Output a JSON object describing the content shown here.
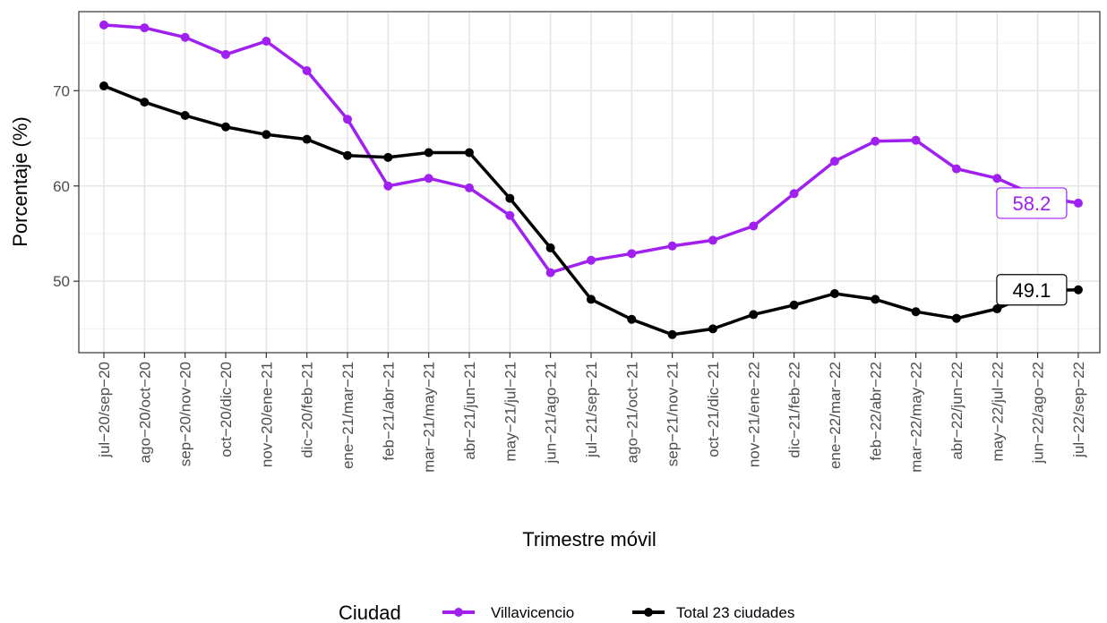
{
  "chart_data": {
    "type": "line",
    "xlabel": "Trimestre móvil",
    "ylabel": "Porcentaje (%)",
    "ylim": [
      42.5,
      78.3
    ],
    "yticks": [
      50,
      60,
      70
    ],
    "grid": true,
    "legend_placement": "bottom",
    "legend_title": "Ciudad",
    "categories": [
      "jul−20/sep−20",
      "ago−20/oct−20",
      "sep−20/nov−20",
      "oct−20/dic−20",
      "nov−20/ene−21",
      "dic−20/feb−21",
      "ene−21/mar−21",
      "feb−21/abr−21",
      "mar−21/may−21",
      "abr−21/jun−21",
      "may−21/jul−21",
      "jun−21/ago−21",
      "jul−21/sep−21",
      "ago−21/oct−21",
      "sep−21/nov−21",
      "oct−21/dic−21",
      "nov−21/ene−22",
      "dic−21/feb−22",
      "ene−22/mar−22",
      "feb−22/abr−22",
      "mar−22/may−22",
      "abr−22/jun−22",
      "may−22/jul−22",
      "jun−22/ago−22",
      "jul−22/sep−22"
    ],
    "series": [
      {
        "name": "Villavicencio",
        "color": "#a020f0",
        "values": [
          76.9,
          76.6,
          75.6,
          73.8,
          75.2,
          72.1,
          67.0,
          60.0,
          60.8,
          59.8,
          56.9,
          50.9,
          52.2,
          52.9,
          53.7,
          54.3,
          55.8,
          59.2,
          62.6,
          64.7,
          64.8,
          61.8,
          60.8,
          58.9,
          58.2
        ],
        "end_label": "58.2"
      },
      {
        "name": "Total 23 ciudades",
        "color": "#000000",
        "values": [
          70.5,
          68.8,
          67.4,
          66.2,
          65.4,
          64.9,
          63.2,
          63.0,
          63.5,
          63.5,
          58.7,
          53.5,
          48.1,
          46.0,
          44.4,
          45.0,
          46.5,
          47.5,
          48.7,
          48.1,
          46.8,
          46.1,
          47.1,
          49.0,
          49.1
        ],
        "end_label": "49.1"
      }
    ]
  }
}
